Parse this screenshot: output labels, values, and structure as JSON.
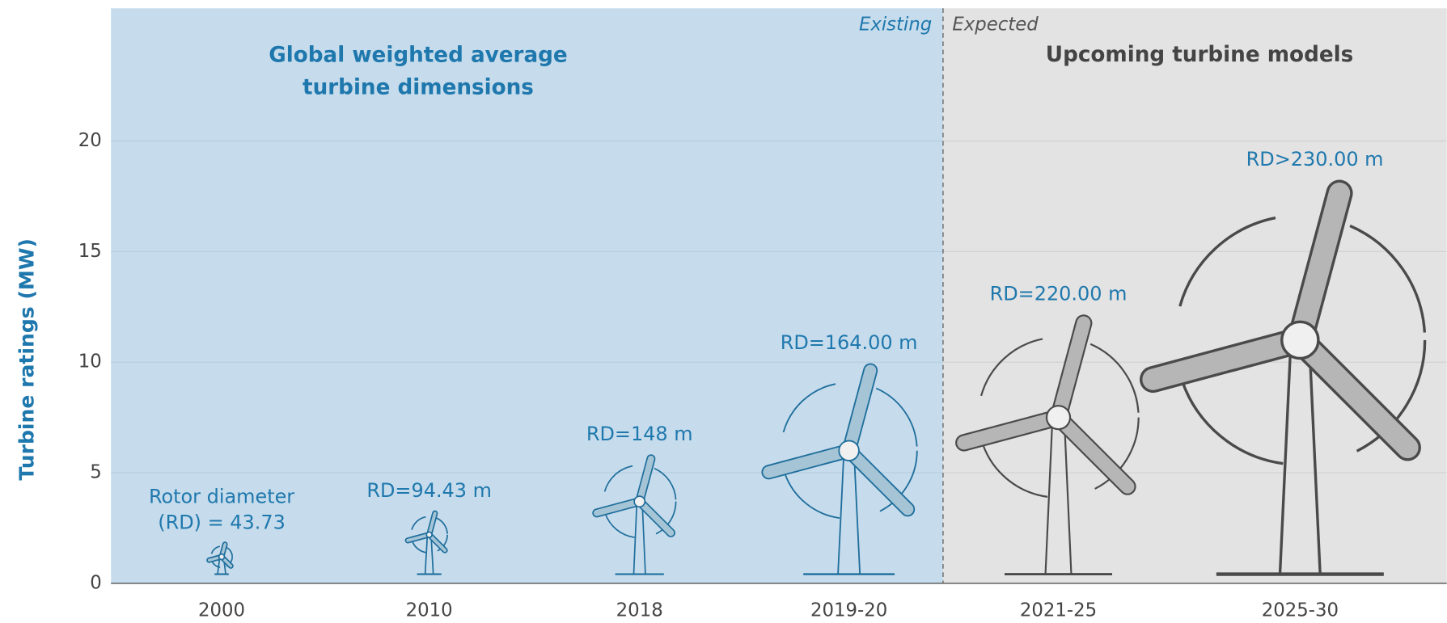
{
  "chart_data": {
    "type": "pictogram",
    "title": "Global weighted average turbine dimensions",
    "subtitle": "Upcoming turbine models",
    "y_label": "Turbine ratings (MW)",
    "categories": [
      "2000",
      "2010",
      "2018",
      "2019-20",
      "2021-25",
      "2025-30"
    ],
    "series": [
      {
        "name": "Existing",
        "color": "#1f6e9c",
        "values": [
          1.2,
          2.2,
          3.7,
          6.0,
          null,
          null
        ]
      },
      {
        "name": "Expected",
        "color": "#4a4a4a",
        "values": [
          null,
          null,
          null,
          null,
          7.5,
          11
        ]
      }
    ],
    "annotations": [
      "Rotor diameter (RD) = 43.73",
      "RD=94.43 m",
      "RD=148 m",
      "RD=164.00 m",
      "RD=220.00 m",
      "RD>230.00 m"
    ],
    "annotation_color": "#1f78ad",
    "ylim": [
      0,
      26
    ],
    "yticks": [
      0,
      5,
      10,
      15,
      20
    ],
    "grid": true,
    "region_colors": [
      "#c6dcec",
      "#e3e3e3"
    ]
  }
}
